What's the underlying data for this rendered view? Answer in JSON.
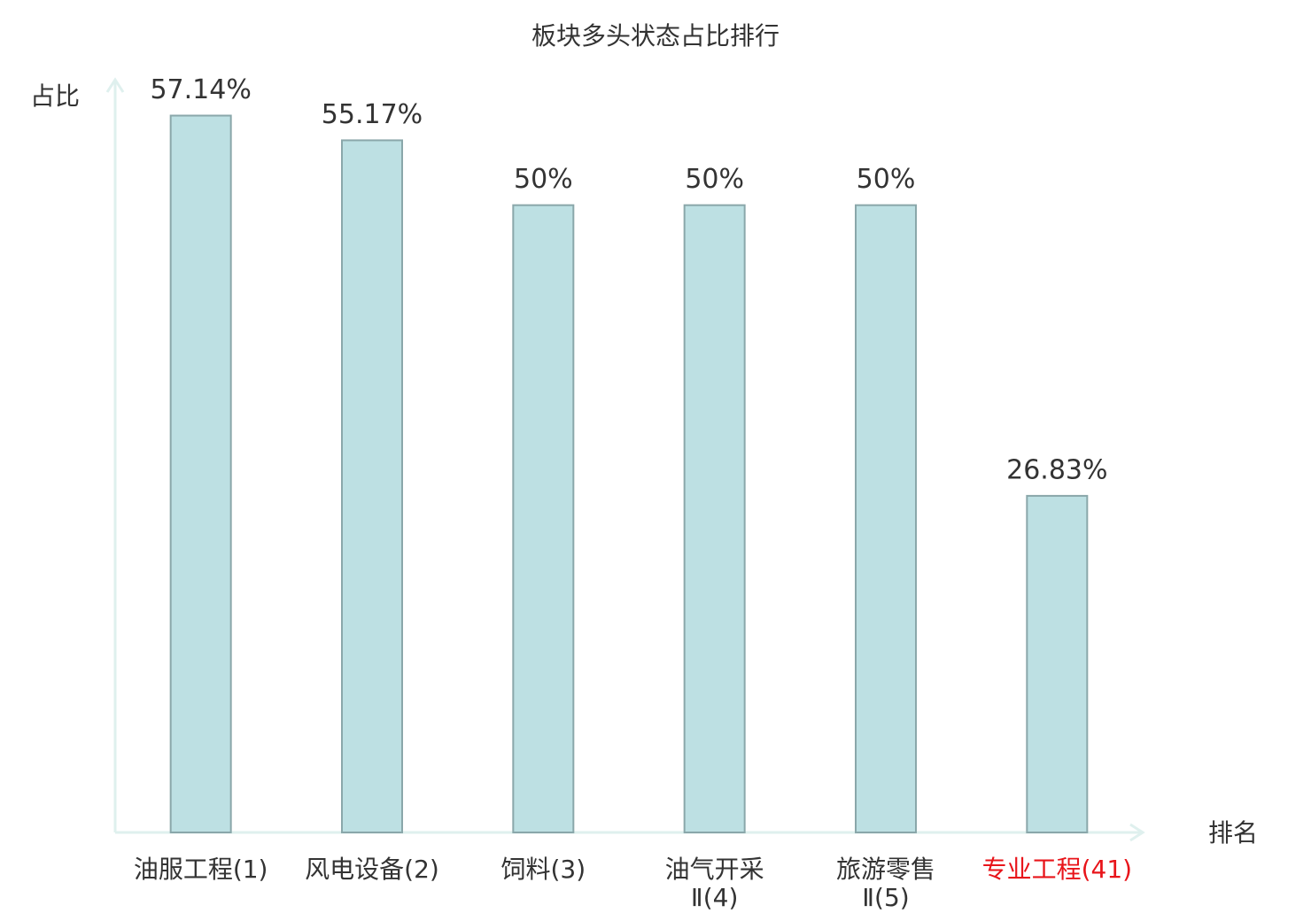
{
  "chart_data": {
    "type": "bar",
    "title": "板块多头状态占比排行",
    "y_label": "占比",
    "x_label": "排名",
    "categories": [
      "油服工程(1)",
      "风电设备(2)",
      "饲料(3)",
      "油气开采\nⅡ(4)",
      "旅游零售\nⅡ(5)",
      "专业工程(41)"
    ],
    "category_colors": [
      "#333333",
      "#333333",
      "#333333",
      "#333333",
      "#333333",
      "#e8141a"
    ],
    "values": [
      57.14,
      55.17,
      50,
      50,
      50,
      26.83
    ],
    "value_labels": [
      "57.14%",
      "55.17%",
      "50%",
      "50%",
      "50%",
      "26.83%"
    ],
    "color": "#bde0e3",
    "edge_color": "#8aa7aa",
    "axis_color": "#dff0ee",
    "ylim": [
      0,
      60
    ]
  }
}
